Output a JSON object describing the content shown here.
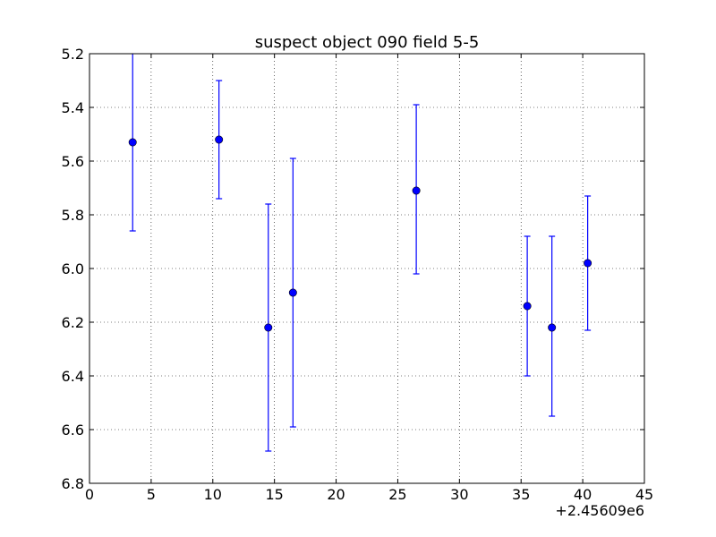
{
  "chart_data": {
    "type": "scatter",
    "title": "suspect object 090 field 5-5",
    "xlabel": "",
    "ylabel": "",
    "x_offset_label": "+2.45609e6",
    "xlim": [
      0,
      45
    ],
    "ylim": [
      5.2,
      6.8
    ],
    "y_inverted": true,
    "grid": true,
    "x_ticks": [
      "0",
      "5",
      "10",
      "15",
      "20",
      "25",
      "30",
      "35",
      "40",
      "45"
    ],
    "y_ticks": [
      "5.2",
      "5.4",
      "5.6",
      "5.8",
      "6.0",
      "6.2",
      "6.4",
      "6.6",
      "6.8"
    ],
    "series": [
      {
        "color": "#0000ff",
        "marker": "circle",
        "points": [
          {
            "x": 3.5,
            "y": 5.53,
            "err_low": 5.2,
            "err_high": 5.86
          },
          {
            "x": 10.5,
            "y": 5.52,
            "err_low": 5.3,
            "err_high": 5.74
          },
          {
            "x": 14.5,
            "y": 6.22,
            "err_low": 5.76,
            "err_high": 6.68
          },
          {
            "x": 16.5,
            "y": 6.09,
            "err_low": 5.59,
            "err_high": 6.59
          },
          {
            "x": 26.5,
            "y": 5.71,
            "err_low": 5.39,
            "err_high": 6.02
          },
          {
            "x": 35.5,
            "y": 6.14,
            "err_low": 5.88,
            "err_high": 6.4
          },
          {
            "x": 37.5,
            "y": 6.22,
            "err_low": 5.88,
            "err_high": 6.55
          },
          {
            "x": 40.4,
            "y": 5.98,
            "err_low": 5.73,
            "err_high": 6.23
          }
        ]
      }
    ]
  }
}
